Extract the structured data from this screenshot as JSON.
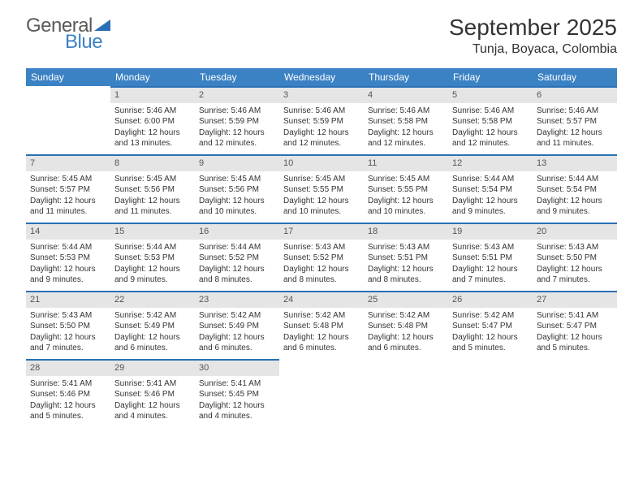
{
  "logo": {
    "general": "General",
    "blue": "Blue"
  },
  "title": "September 2025",
  "location": "Tunja, Boyaca, Colombia",
  "colors": {
    "header_bg": "#3b82c4",
    "day_bar_bg": "#e5e5e5",
    "day_bar_border": "#2a6fb5",
    "text": "#333333",
    "logo_gray": "#5a5a5a",
    "logo_blue": "#3b82c4"
  },
  "weekdays": [
    "Sunday",
    "Monday",
    "Tuesday",
    "Wednesday",
    "Thursday",
    "Friday",
    "Saturday"
  ],
  "start_offset": 1,
  "days": [
    {
      "n": 1,
      "sunrise": "5:46 AM",
      "sunset": "6:00 PM",
      "daylight": "12 hours and 13 minutes."
    },
    {
      "n": 2,
      "sunrise": "5:46 AM",
      "sunset": "5:59 PM",
      "daylight": "12 hours and 12 minutes."
    },
    {
      "n": 3,
      "sunrise": "5:46 AM",
      "sunset": "5:59 PM",
      "daylight": "12 hours and 12 minutes."
    },
    {
      "n": 4,
      "sunrise": "5:46 AM",
      "sunset": "5:58 PM",
      "daylight": "12 hours and 12 minutes."
    },
    {
      "n": 5,
      "sunrise": "5:46 AM",
      "sunset": "5:58 PM",
      "daylight": "12 hours and 12 minutes."
    },
    {
      "n": 6,
      "sunrise": "5:46 AM",
      "sunset": "5:57 PM",
      "daylight": "12 hours and 11 minutes."
    },
    {
      "n": 7,
      "sunrise": "5:45 AM",
      "sunset": "5:57 PM",
      "daylight": "12 hours and 11 minutes."
    },
    {
      "n": 8,
      "sunrise": "5:45 AM",
      "sunset": "5:56 PM",
      "daylight": "12 hours and 11 minutes."
    },
    {
      "n": 9,
      "sunrise": "5:45 AM",
      "sunset": "5:56 PM",
      "daylight": "12 hours and 10 minutes."
    },
    {
      "n": 10,
      "sunrise": "5:45 AM",
      "sunset": "5:55 PM",
      "daylight": "12 hours and 10 minutes."
    },
    {
      "n": 11,
      "sunrise": "5:45 AM",
      "sunset": "5:55 PM",
      "daylight": "12 hours and 10 minutes."
    },
    {
      "n": 12,
      "sunrise": "5:44 AM",
      "sunset": "5:54 PM",
      "daylight": "12 hours and 9 minutes."
    },
    {
      "n": 13,
      "sunrise": "5:44 AM",
      "sunset": "5:54 PM",
      "daylight": "12 hours and 9 minutes."
    },
    {
      "n": 14,
      "sunrise": "5:44 AM",
      "sunset": "5:53 PM",
      "daylight": "12 hours and 9 minutes."
    },
    {
      "n": 15,
      "sunrise": "5:44 AM",
      "sunset": "5:53 PM",
      "daylight": "12 hours and 9 minutes."
    },
    {
      "n": 16,
      "sunrise": "5:44 AM",
      "sunset": "5:52 PM",
      "daylight": "12 hours and 8 minutes."
    },
    {
      "n": 17,
      "sunrise": "5:43 AM",
      "sunset": "5:52 PM",
      "daylight": "12 hours and 8 minutes."
    },
    {
      "n": 18,
      "sunrise": "5:43 AM",
      "sunset": "5:51 PM",
      "daylight": "12 hours and 8 minutes."
    },
    {
      "n": 19,
      "sunrise": "5:43 AM",
      "sunset": "5:51 PM",
      "daylight": "12 hours and 7 minutes."
    },
    {
      "n": 20,
      "sunrise": "5:43 AM",
      "sunset": "5:50 PM",
      "daylight": "12 hours and 7 minutes."
    },
    {
      "n": 21,
      "sunrise": "5:43 AM",
      "sunset": "5:50 PM",
      "daylight": "12 hours and 7 minutes."
    },
    {
      "n": 22,
      "sunrise": "5:42 AM",
      "sunset": "5:49 PM",
      "daylight": "12 hours and 6 minutes."
    },
    {
      "n": 23,
      "sunrise": "5:42 AM",
      "sunset": "5:49 PM",
      "daylight": "12 hours and 6 minutes."
    },
    {
      "n": 24,
      "sunrise": "5:42 AM",
      "sunset": "5:48 PM",
      "daylight": "12 hours and 6 minutes."
    },
    {
      "n": 25,
      "sunrise": "5:42 AM",
      "sunset": "5:48 PM",
      "daylight": "12 hours and 6 minutes."
    },
    {
      "n": 26,
      "sunrise": "5:42 AM",
      "sunset": "5:47 PM",
      "daylight": "12 hours and 5 minutes."
    },
    {
      "n": 27,
      "sunrise": "5:41 AM",
      "sunset": "5:47 PM",
      "daylight": "12 hours and 5 minutes."
    },
    {
      "n": 28,
      "sunrise": "5:41 AM",
      "sunset": "5:46 PM",
      "daylight": "12 hours and 5 minutes."
    },
    {
      "n": 29,
      "sunrise": "5:41 AM",
      "sunset": "5:46 PM",
      "daylight": "12 hours and 4 minutes."
    },
    {
      "n": 30,
      "sunrise": "5:41 AM",
      "sunset": "5:45 PM",
      "daylight": "12 hours and 4 minutes."
    }
  ],
  "labels": {
    "sunrise": "Sunrise:",
    "sunset": "Sunset:",
    "daylight": "Daylight:"
  }
}
